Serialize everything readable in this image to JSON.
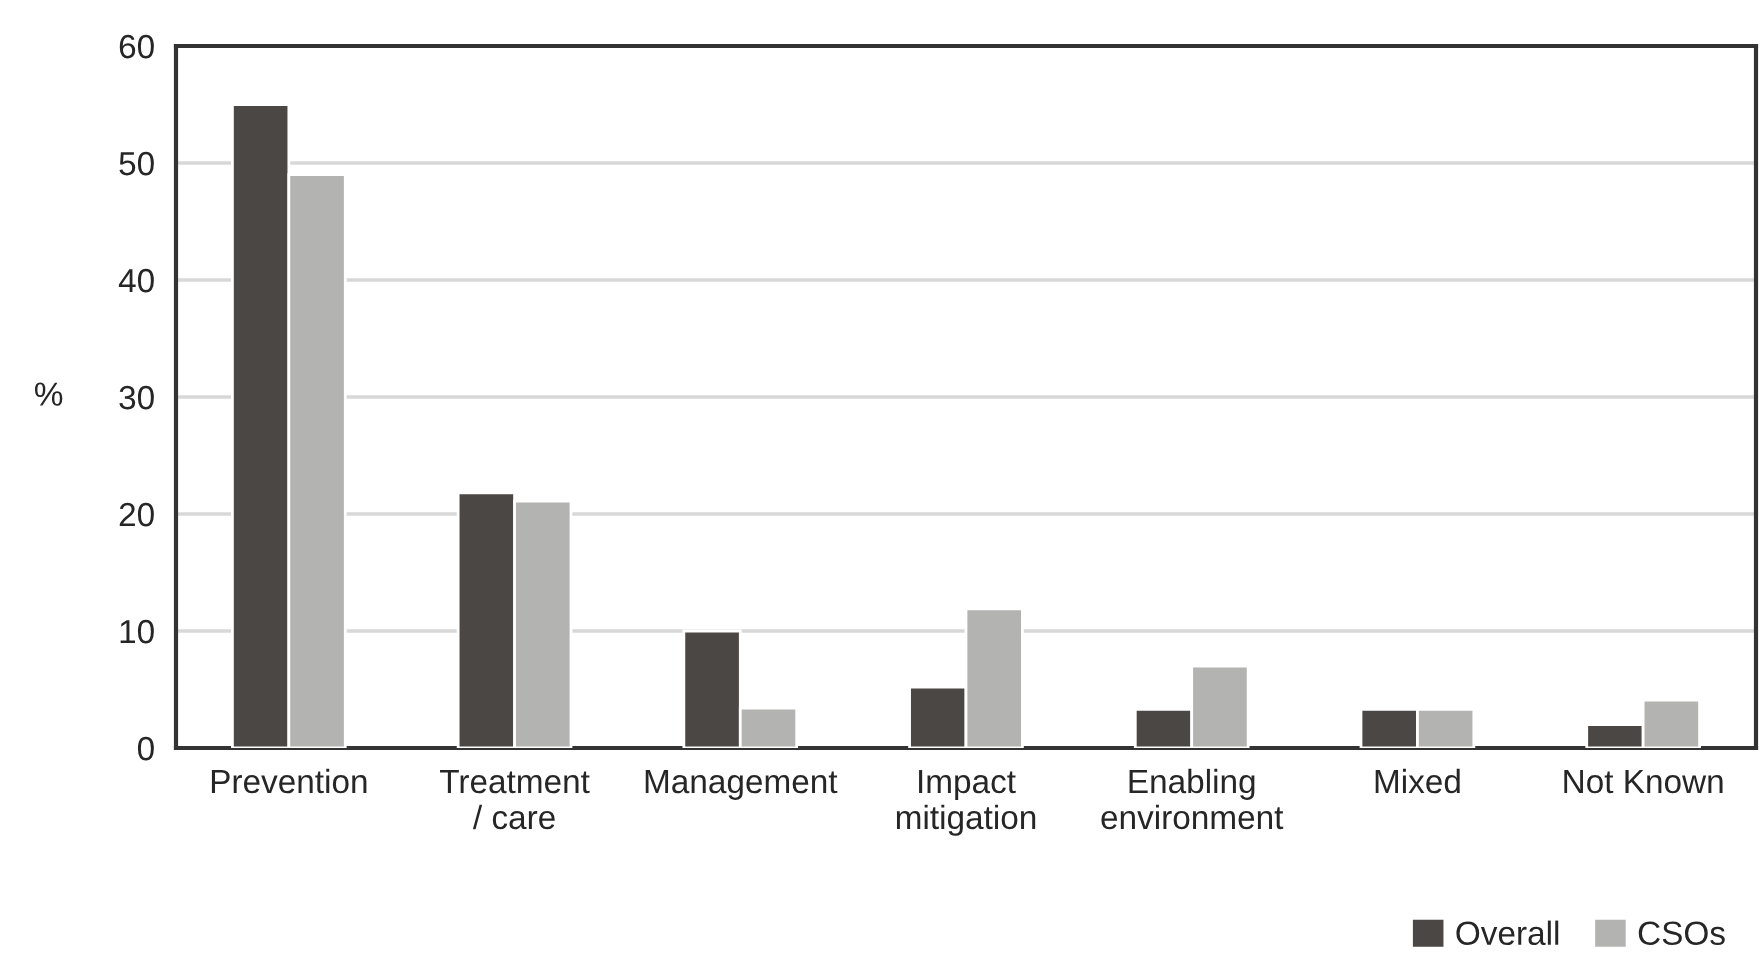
{
  "chart_data": {
    "type": "bar",
    "ylabel": "%",
    "categories": [
      "Prevention",
      "Treatment\n/ care",
      "Management",
      "Impact\nmitigation",
      "Enabling\nenvironment",
      "Mixed",
      "Not Known"
    ],
    "series": [
      {
        "name": "Overall",
        "color": "#4a4744",
        "values": [
          55,
          21.8,
          10,
          5.2,
          3.3,
          3.3,
          2.0
        ]
      },
      {
        "name": "CSOs",
        "color": "#b3b3b1",
        "values": [
          49,
          21.1,
          3.4,
          11.9,
          7.0,
          3.3,
          4.1
        ]
      }
    ],
    "ylim": [
      0,
      60
    ],
    "yticks": [
      0,
      10,
      20,
      30,
      40,
      50,
      60
    ],
    "grid": "y",
    "legend": "bottom right"
  }
}
